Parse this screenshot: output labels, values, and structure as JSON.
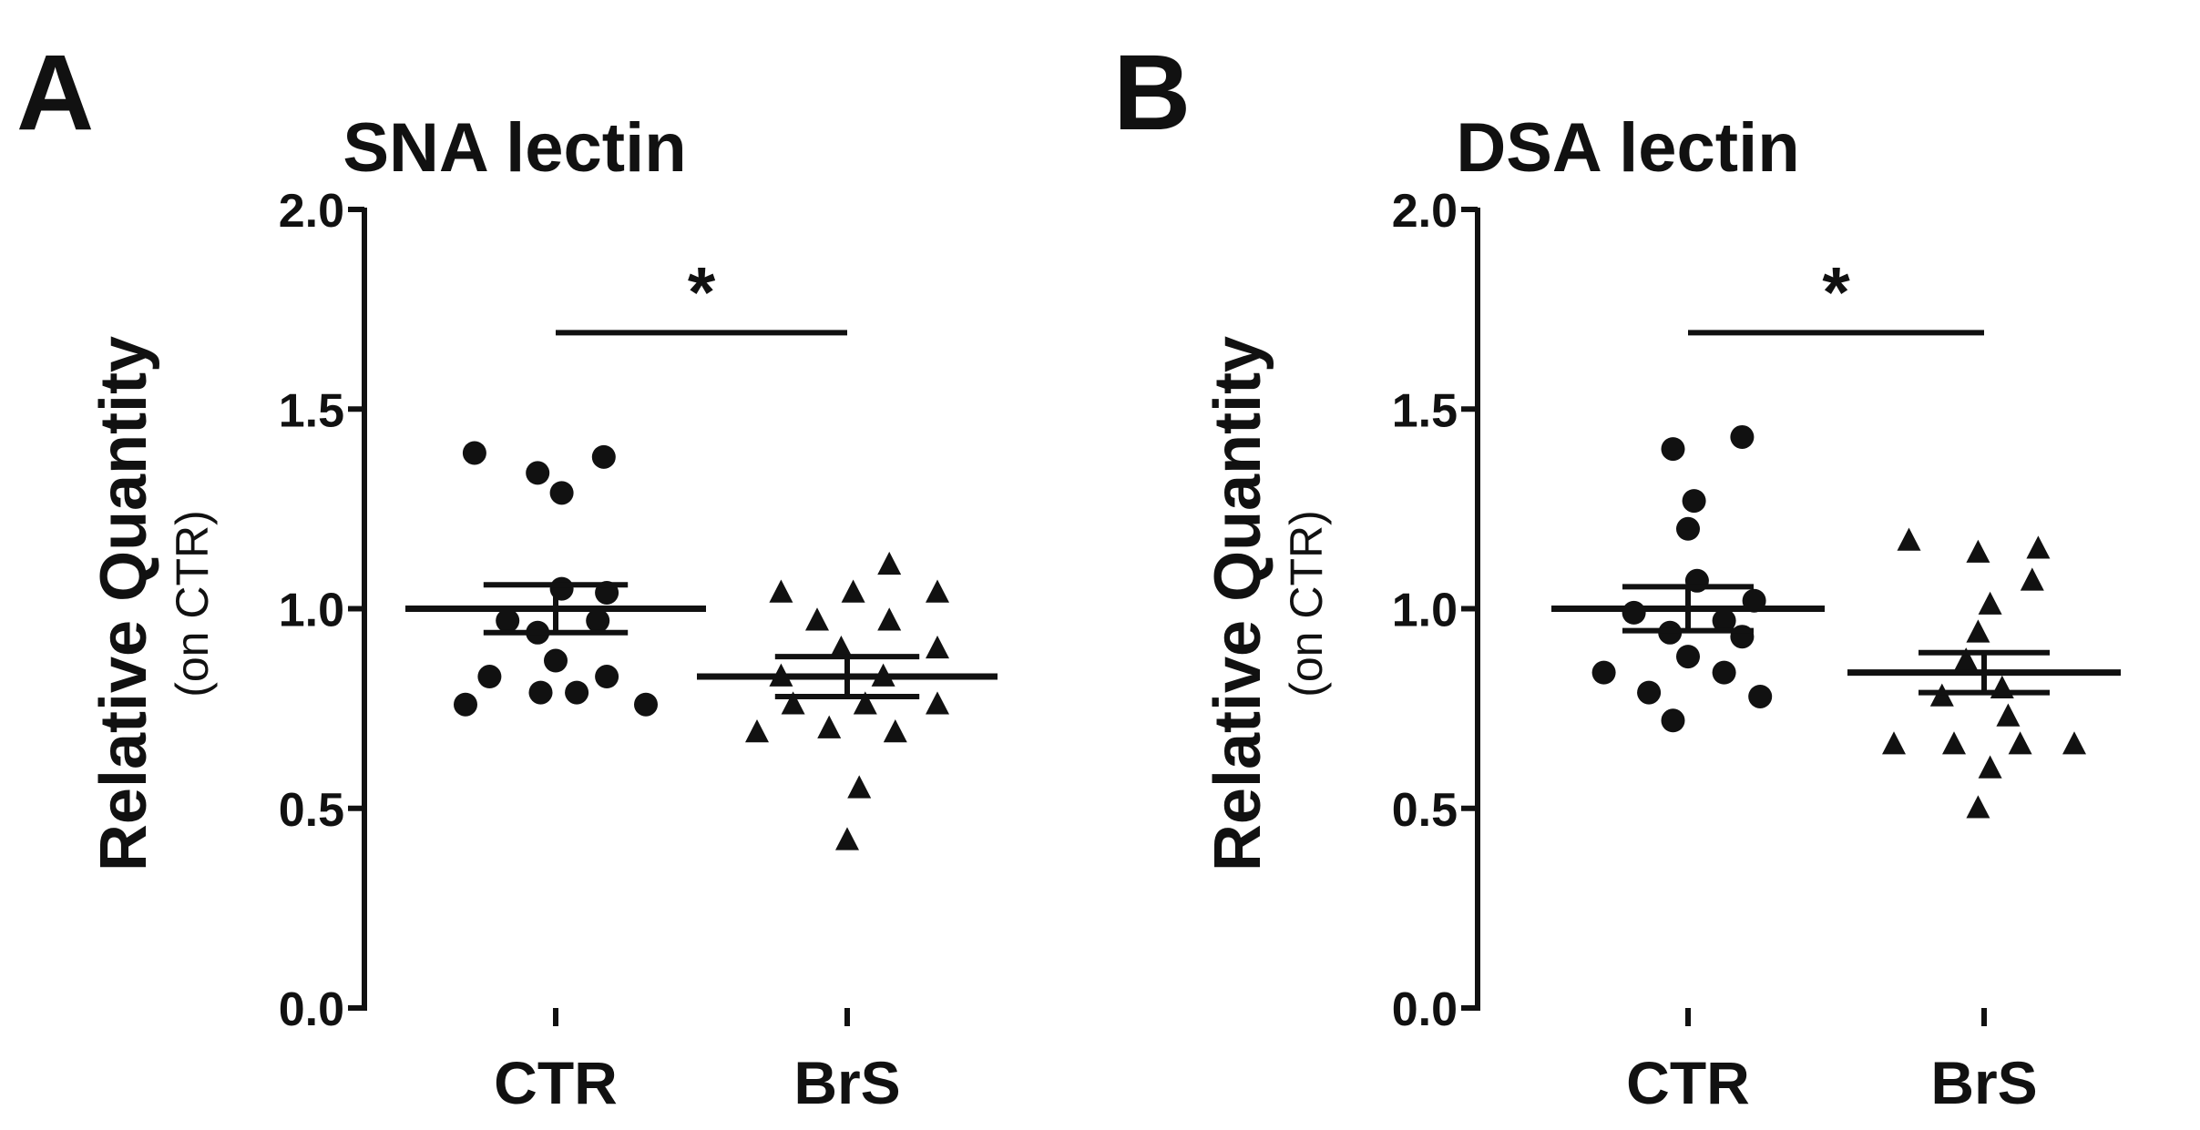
{
  "chart_data": [
    {
      "panel": "A",
      "type": "scatter",
      "title": "SNA lectin",
      "ylabel": "Relative Quantity",
      "ylabel_sub": "(on CTR)",
      "ylim": [
        0,
        2.0
      ],
      "yticks": [
        "0.0",
        "0.5",
        "1.0",
        "1.5",
        "2.0"
      ],
      "categories": [
        "CTR",
        "BrS"
      ],
      "series": [
        {
          "name": "CTR",
          "marker": "circle",
          "points": [
            {
              "dx": -0.27,
              "y": 1.39
            },
            {
              "dx": -0.06,
              "y": 1.34
            },
            {
              "dx": 0.16,
              "y": 1.38
            },
            {
              "dx": 0.02,
              "y": 1.29
            },
            {
              "dx": 0.02,
              "y": 1.05
            },
            {
              "dx": 0.17,
              "y": 1.04
            },
            {
              "dx": -0.16,
              "y": 0.97
            },
            {
              "dx": 0.14,
              "y": 0.97
            },
            {
              "dx": -0.06,
              "y": 0.94
            },
            {
              "dx": 0.0,
              "y": 0.87
            },
            {
              "dx": -0.22,
              "y": 0.83
            },
            {
              "dx": 0.17,
              "y": 0.83
            },
            {
              "dx": -0.05,
              "y": 0.79
            },
            {
              "dx": 0.07,
              "y": 0.79
            },
            {
              "dx": -0.3,
              "y": 0.76
            },
            {
              "dx": 0.3,
              "y": 0.76
            }
          ],
          "mean": 1.0,
          "sem": 0.06
        },
        {
          "name": "BrS",
          "marker": "triangle",
          "points": [
            {
              "dx": 0.14,
              "y": 1.11
            },
            {
              "dx": -0.22,
              "y": 1.04
            },
            {
              "dx": 0.02,
              "y": 1.04
            },
            {
              "dx": 0.3,
              "y": 1.04
            },
            {
              "dx": -0.1,
              "y": 0.97
            },
            {
              "dx": 0.14,
              "y": 0.97
            },
            {
              "dx": 0.3,
              "y": 0.9
            },
            {
              "dx": -0.02,
              "y": 0.9
            },
            {
              "dx": -0.22,
              "y": 0.83
            },
            {
              "dx": 0.12,
              "y": 0.83
            },
            {
              "dx": -0.18,
              "y": 0.76
            },
            {
              "dx": 0.06,
              "y": 0.76
            },
            {
              "dx": 0.3,
              "y": 0.76
            },
            {
              "dx": -0.06,
              "y": 0.7
            },
            {
              "dx": -0.3,
              "y": 0.69
            },
            {
              "dx": 0.16,
              "y": 0.69
            },
            {
              "dx": 0.04,
              "y": 0.55
            },
            {
              "dx": 0.0,
              "y": 0.42
            }
          ],
          "mean": 0.83,
          "sem": 0.05
        }
      ],
      "significance": {
        "from": "CTR",
        "to": "BrS",
        "y": 1.6,
        "label": "*"
      }
    },
    {
      "panel": "B",
      "type": "scatter",
      "title": "DSA lectin",
      "ylabel": "Relative Quantity",
      "ylabel_sub": "(on CTR)",
      "ylim": [
        0,
        2.0
      ],
      "yticks": [
        "0.0",
        "0.5",
        "1.0",
        "1.5",
        "2.0"
      ],
      "categories": [
        "CTR",
        "BrS"
      ],
      "series": [
        {
          "name": "CTR",
          "marker": "circle",
          "points": [
            {
              "dx": 0.18,
              "y": 1.43
            },
            {
              "dx": -0.05,
              "y": 1.4
            },
            {
              "dx": 0.02,
              "y": 1.27
            },
            {
              "dx": 0.0,
              "y": 1.2
            },
            {
              "dx": 0.03,
              "y": 1.07
            },
            {
              "dx": 0.22,
              "y": 1.02
            },
            {
              "dx": -0.18,
              "y": 0.99
            },
            {
              "dx": 0.12,
              "y": 0.97
            },
            {
              "dx": -0.06,
              "y": 0.94
            },
            {
              "dx": 0.18,
              "y": 0.93
            },
            {
              "dx": 0.0,
              "y": 0.88
            },
            {
              "dx": -0.28,
              "y": 0.84
            },
            {
              "dx": 0.12,
              "y": 0.84
            },
            {
              "dx": -0.13,
              "y": 0.79
            },
            {
              "dx": 0.24,
              "y": 0.78
            },
            {
              "dx": -0.05,
              "y": 0.72
            }
          ],
          "mean": 1.0,
          "sem": 0.055
        },
        {
          "name": "BrS",
          "marker": "triangle",
          "points": [
            {
              "dx": -0.25,
              "y": 1.17
            },
            {
              "dx": 0.18,
              "y": 1.15
            },
            {
              "dx": -0.02,
              "y": 1.14
            },
            {
              "dx": 0.16,
              "y": 1.07
            },
            {
              "dx": 0.02,
              "y": 1.01
            },
            {
              "dx": -0.02,
              "y": 0.94
            },
            {
              "dx": -0.06,
              "y": 0.87
            },
            {
              "dx": 0.06,
              "y": 0.8
            },
            {
              "dx": -0.14,
              "y": 0.78
            },
            {
              "dx": 0.08,
              "y": 0.73
            },
            {
              "dx": -0.3,
              "y": 0.66
            },
            {
              "dx": -0.1,
              "y": 0.66
            },
            {
              "dx": 0.12,
              "y": 0.66
            },
            {
              "dx": 0.3,
              "y": 0.66
            },
            {
              "dx": 0.02,
              "y": 0.6
            },
            {
              "dx": -0.02,
              "y": 0.5
            }
          ],
          "mean": 0.84,
          "sem": 0.05
        }
      ],
      "significance": {
        "from": "CTR",
        "to": "BrS",
        "y": 1.6,
        "label": "*"
      }
    }
  ]
}
